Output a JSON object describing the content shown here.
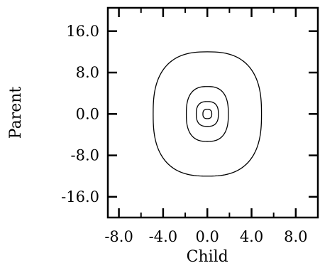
{
  "chart_data": {
    "type": "contour",
    "title": "",
    "xlabel": "Child",
    "ylabel": "Parent",
    "xlim": [
      -9.0,
      10.0
    ],
    "ylim": [
      -20.0,
      20.5
    ],
    "xticks": [
      -8.0,
      -4.0,
      0.0,
      4.0,
      8.0
    ],
    "xtick_labels": [
      "-8.0",
      "-4.0",
      "0.0",
      "4.0",
      "8.0"
    ],
    "yticks": [
      -16.0,
      -8.0,
      0.0,
      8.0,
      16.0
    ],
    "ytick_labels": [
      "-16.0",
      "-8.0",
      "0.0",
      "8.0",
      "16.0"
    ],
    "minor_xticks": [
      -6.0,
      -2.0,
      2.0,
      6.0
    ],
    "grid": false,
    "contours": [
      {
        "level": 1,
        "center": [
          0.0,
          0.0
        ],
        "half_width_x": 0.4,
        "half_height_y": 0.9
      },
      {
        "level": 2,
        "center": [
          0.0,
          0.0
        ],
        "half_width_x": 1.0,
        "half_height_y": 2.4
      },
      {
        "level": 3,
        "center": [
          0.0,
          0.0
        ],
        "half_width_x": 1.9,
        "half_height_y": 5.3
      },
      {
        "level": 4,
        "center": [
          0.0,
          0.0
        ],
        "half_width_x": 4.9,
        "half_height_y": 12.0
      }
    ]
  }
}
